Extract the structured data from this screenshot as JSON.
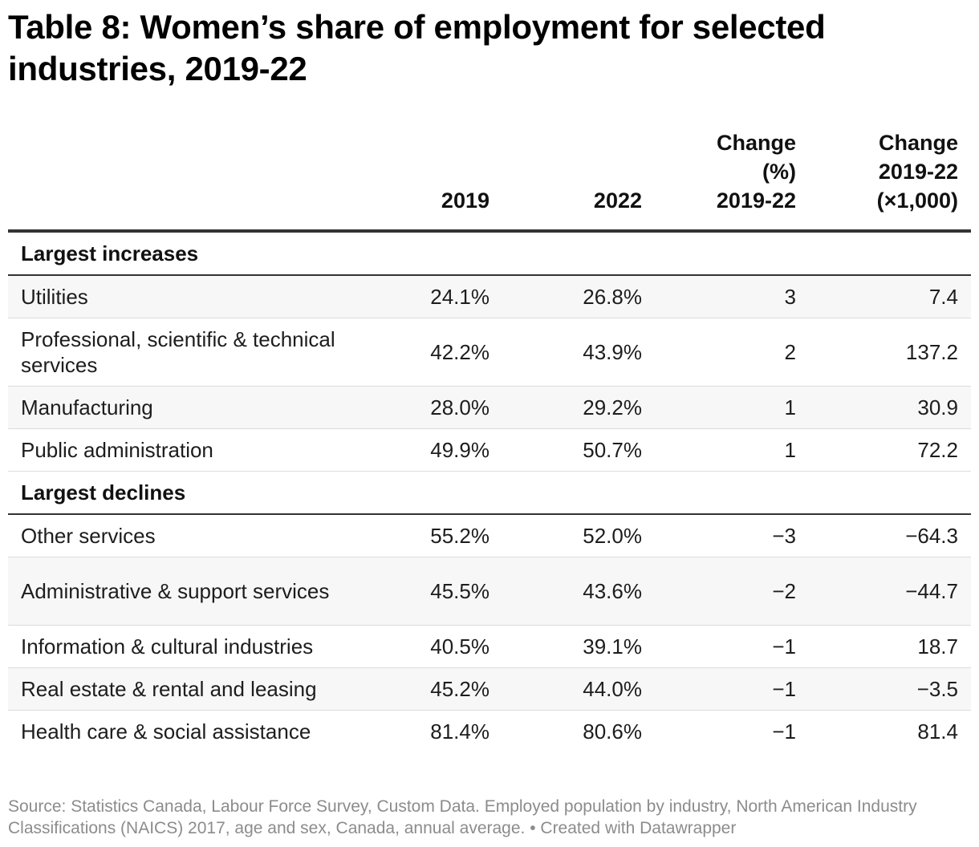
{
  "title": "Table 8: Women’s share of employment for selected industries, 2019-22",
  "headers": [
    "",
    "2019",
    "2022",
    "Change\n(%)\n2019-22",
    "Change\n2019-22\n(×1,000)"
  ],
  "groups": [
    {
      "label": "Largest increases",
      "rows": [
        {
          "industry": "Utilities",
          "y2019": "24.1%",
          "y2022": "26.8%",
          "change_pct": "3",
          "change_abs": "7.4"
        },
        {
          "industry": "Professional, scientific & technical services",
          "y2019": "42.2%",
          "y2022": "43.9%",
          "change_pct": "2",
          "change_abs": "137.2"
        },
        {
          "industry": "Manufacturing",
          "y2019": "28.0%",
          "y2022": "29.2%",
          "change_pct": "1",
          "change_abs": "30.9"
        },
        {
          "industry": "Public administration",
          "y2019": "49.9%",
          "y2022": "50.7%",
          "change_pct": "1",
          "change_abs": "72.2"
        }
      ]
    },
    {
      "label": "Largest declines",
      "rows": [
        {
          "industry": "Other services",
          "y2019": "55.2%",
          "y2022": "52.0%",
          "change_pct": "−3",
          "change_abs": "−64.3"
        },
        {
          "industry": "Administrative & support services",
          "y2019": "45.5%",
          "y2022": "43.6%",
          "change_pct": "−2",
          "change_abs": "−44.7"
        },
        {
          "industry": "Information & cultural industries",
          "y2019": "40.5%",
          "y2022": "39.1%",
          "change_pct": "−1",
          "change_abs": "18.7"
        },
        {
          "industry": "Real estate & rental and leasing",
          "y2019": "45.2%",
          "y2022": "44.0%",
          "change_pct": "−1",
          "change_abs": "−3.5"
        },
        {
          "industry": "Health care & social assistance",
          "y2019": "81.4%",
          "y2022": "80.6%",
          "change_pct": "−1",
          "change_abs": "81.4"
        }
      ]
    }
  ],
  "source": "Source: Statistics Canada, Labour Force Survey, Custom Data. Employed population by industry, North American Industry Classifications (NAICS) 2017, age and sex, Canada, annual average. • Created with Datawrapper"
}
